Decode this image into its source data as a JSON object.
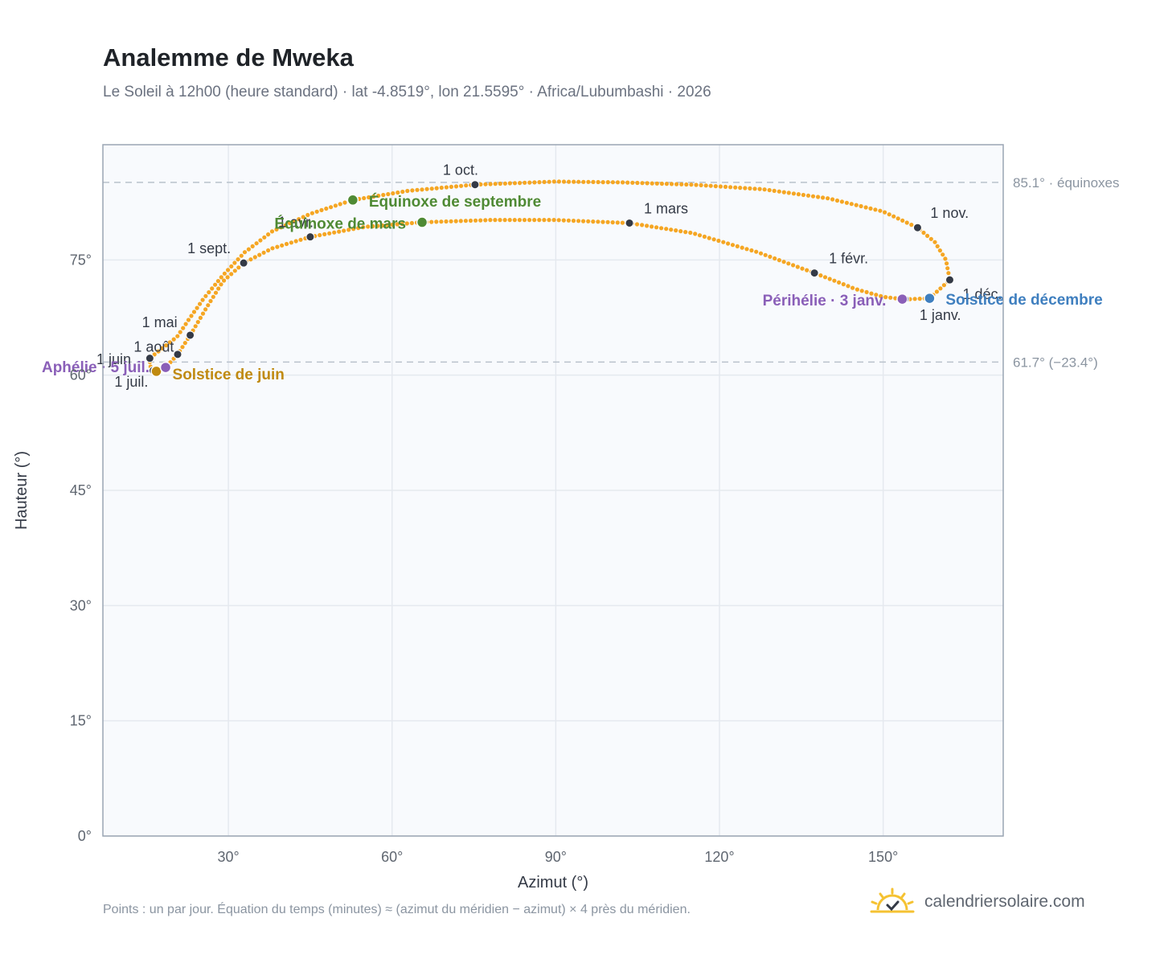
{
  "title": "Analemme de Mweka",
  "subtitle": "Le Soleil à 12h00 (heure standard) · lat -4.8519°, lon 21.5595° · Africa/Lubumbashi · 2026",
  "footnote": "Points : un par jour. Équation du temps (minutes) ≈ (azimut du méridien − azimut) × 4 près du méridien.",
  "brand": {
    "name": "calendriersolaire.com",
    "icon": "sun-check-icon"
  },
  "colors": {
    "curve": "#f5a623",
    "month_dot": "#343a46",
    "equinox": "#4f8a34",
    "june_solstice": "#c08a10",
    "december_solstice": "#3f7fbf",
    "apsides": "#8a5fb8",
    "grid": "#e5e9ef",
    "plot_bg": "#f8fafd",
    "frame": "#9aa5b4",
    "ref_line": "#b9c2cc"
  },
  "chart_data": {
    "type": "scatter",
    "xlabel": "Azimut (°)",
    "ylabel": "Hauteur (°)",
    "xlim": [
      7,
      172
    ],
    "ylim": [
      0,
      90
    ],
    "xticks": [
      30,
      60,
      90,
      120,
      150
    ],
    "xtick_labels": [
      "30°",
      "60°",
      "90°",
      "120°",
      "150°"
    ],
    "yticks": [
      0,
      15,
      30,
      45,
      60,
      75
    ],
    "ytick_labels": [
      "0°",
      "15°",
      "30°",
      "45°",
      "60°",
      "75°"
    ],
    "grid": true,
    "reference_lines": [
      {
        "y": 85.1,
        "label": "85.1° · équinoxes"
      },
      {
        "y": 61.7,
        "label": "61.7° (−23.4°)"
      }
    ],
    "series_name": "un par jour",
    "analemma_path": [
      [
        158.5,
        70.0
      ],
      [
        162.2,
        72.4
      ],
      [
        161.5,
        75.0
      ],
      [
        159.5,
        77.3
      ],
      [
        156.3,
        79.2
      ],
      [
        150.0,
        81.3
      ],
      [
        140.0,
        83.0
      ],
      [
        128.0,
        84.2
      ],
      [
        115.0,
        84.8
      ],
      [
        102.0,
        85.1
      ],
      [
        90.0,
        85.2
      ],
      [
        75.2,
        84.8
      ],
      [
        63.0,
        84.0
      ],
      [
        52.8,
        82.8
      ],
      [
        45.0,
        81.0
      ],
      [
        38.0,
        78.7
      ],
      [
        33.0,
        76.0
      ],
      [
        29.0,
        73.0
      ],
      [
        25.5,
        70.0
      ],
      [
        23.0,
        67.5
      ],
      [
        20.6,
        65.0
      ],
      [
        17.0,
        63.0
      ],
      [
        15.6,
        62.2
      ],
      [
        15.6,
        61.2
      ],
      [
        16.8,
        60.5
      ],
      [
        18.5,
        61.0
      ],
      [
        20.7,
        62.7
      ],
      [
        23.0,
        65.2
      ],
      [
        26.0,
        68.8
      ],
      [
        29.0,
        72.2
      ],
      [
        32.8,
        74.6
      ],
      [
        38.0,
        76.5
      ],
      [
        45.0,
        78.0
      ],
      [
        55.0,
        79.3
      ],
      [
        65.5,
        79.9
      ],
      [
        78.0,
        80.2
      ],
      [
        90.0,
        80.2
      ],
      [
        103.5,
        79.8
      ],
      [
        115.0,
        78.5
      ],
      [
        127.0,
        76.0
      ],
      [
        137.4,
        73.3
      ],
      [
        145.0,
        71.2
      ],
      [
        150.0,
        70.2
      ],
      [
        153.5,
        69.9
      ],
      [
        155.0,
        69.9
      ],
      [
        158.5,
        70.0
      ]
    ],
    "month_points": [
      {
        "label": "1 janv.",
        "az": 154.0,
        "alt": 69.9
      },
      {
        "label": "1 févr.",
        "az": 137.4,
        "alt": 73.3
      },
      {
        "label": "1 mars",
        "az": 103.5,
        "alt": 79.8
      },
      {
        "label": "1 avr.",
        "az": 45.0,
        "alt": 78.0
      },
      {
        "label": "1 mai",
        "az": 23.0,
        "alt": 65.2
      },
      {
        "label": "1 juin",
        "az": 20.7,
        "alt": 62.7
      },
      {
        "label": "1 juil.",
        "az": 16.2,
        "alt": 60.6
      },
      {
        "label": "1 août",
        "az": 15.6,
        "alt": 62.2
      },
      {
        "label": "1 sept.",
        "az": 32.8,
        "alt": 74.6
      },
      {
        "label": "1 oct.",
        "az": 75.2,
        "alt": 84.8
      },
      {
        "label": "1 nov.",
        "az": 156.3,
        "alt": 79.2
      },
      {
        "label": "1 déc.",
        "az": 162.2,
        "alt": 72.4
      }
    ],
    "events": [
      {
        "label": "Équinoxe de mars",
        "az": 65.5,
        "alt": 79.9,
        "color_key": "equinox"
      },
      {
        "label": "Équinoxe de septembre",
        "az": 52.8,
        "alt": 82.8,
        "color_key": "equinox"
      },
      {
        "label": "Solstice de juin",
        "az": 16.8,
        "alt": 60.5,
        "color_key": "june_solstice"
      },
      {
        "label": "Solstice de décembre",
        "az": 158.5,
        "alt": 70.0,
        "color_key": "december_solstice"
      },
      {
        "label": "Aphélie · 5 juil.",
        "az": 18.5,
        "alt": 61.0,
        "color_key": "apsides"
      },
      {
        "label": "Périhélie · 3 janv.",
        "az": 153.5,
        "alt": 69.9,
        "color_key": "apsides"
      }
    ]
  }
}
